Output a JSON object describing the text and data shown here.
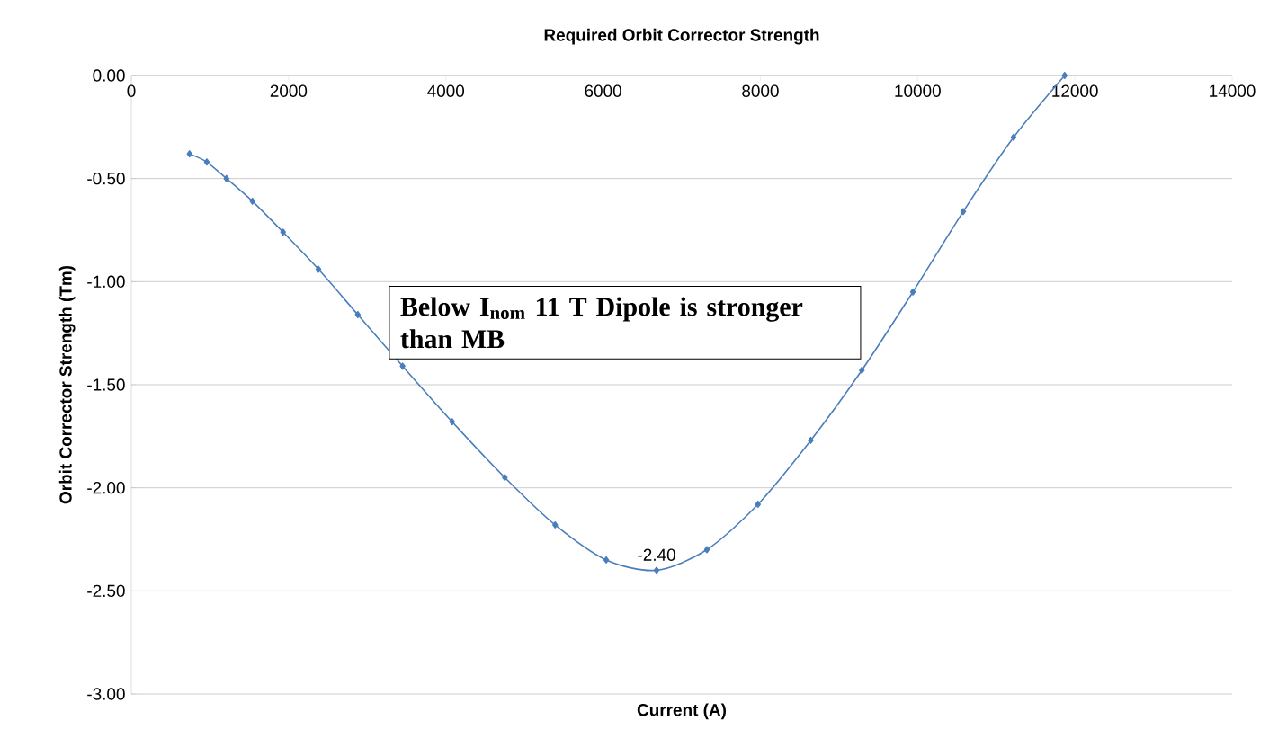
{
  "chart_data": {
    "type": "line",
    "title": "Required Orbit Corrector Strength",
    "xlabel": "Current (A)",
    "ylabel": "Orbit Corrector Strength (Tm)",
    "x": [
      740,
      960,
      1210,
      1540,
      1930,
      2380,
      2880,
      3450,
      4080,
      4750,
      5390,
      6040,
      6680,
      7320,
      7970,
      8640,
      9290,
      9940,
      10580,
      11220,
      11870
    ],
    "values": [
      -0.38,
      -0.42,
      -0.5,
      -0.61,
      -0.76,
      -0.94,
      -1.16,
      -1.41,
      -1.68,
      -1.95,
      -2.18,
      -2.35,
      -2.4,
      -2.3,
      -2.08,
      -1.77,
      -1.43,
      -1.05,
      -0.66,
      -0.3,
      0.0
    ],
    "value_labels": [
      null,
      null,
      null,
      null,
      null,
      null,
      null,
      null,
      null,
      null,
      null,
      null,
      "-2.40",
      null,
      null,
      null,
      null,
      null,
      null,
      null,
      null
    ],
    "color": "#4a7ebb",
    "marker": "diamond",
    "grid": "y",
    "xlim": [
      0,
      14000
    ],
    "ylim": [
      -3,
      0
    ],
    "xticks": [
      0,
      2000,
      4000,
      6000,
      8000,
      10000,
      12000,
      14000
    ],
    "yticks": [
      {
        "value": 0,
        "label": "0.00"
      },
      {
        "value": -0.5,
        "label": "-0.50"
      },
      {
        "value": -1,
        "label": "-1.00"
      },
      {
        "value": -1.5,
        "label": "-1.50"
      },
      {
        "value": -2,
        "label": "-2.00"
      },
      {
        "value": -2.5,
        "label": "-2.50"
      },
      {
        "value": -3,
        "label": "-3.00"
      }
    ],
    "annotations": [
      "Below I$_{nom}$ 11 T Dipole is stronger than MB"
    ]
  }
}
